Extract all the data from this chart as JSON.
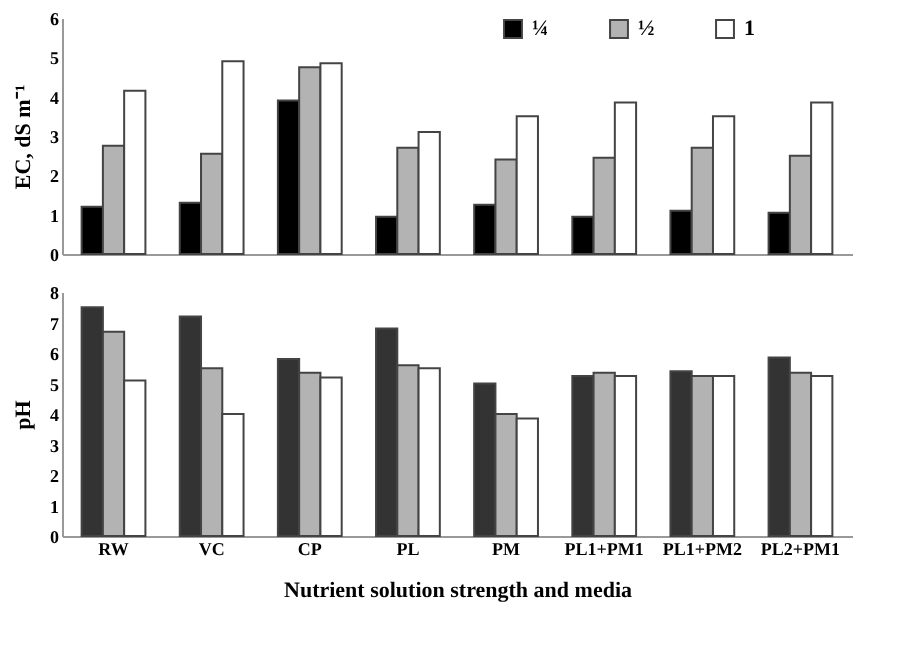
{
  "chart_data": [
    {
      "type": "bar",
      "ylabel": "EC, dS m⁻¹",
      "categories": [
        null,
        null,
        null,
        null,
        null,
        null,
        null,
        null
      ],
      "ylim": [
        0,
        6
      ],
      "yticks": [
        0,
        1,
        2,
        3,
        4,
        5,
        6
      ],
      "tick_labels": "y",
      "legend": "top right",
      "grid": false,
      "series": [
        {
          "name": "¼",
          "color": "#000000",
          "values": [
            1.2,
            1.3,
            3.9,
            0.95,
            1.25,
            0.95,
            1.1,
            1.05
          ]
        },
        {
          "name": "½",
          "color": "#b3b3b3",
          "values": [
            2.75,
            2.55,
            4.75,
            2.7,
            2.4,
            2.45,
            2.7,
            2.5
          ]
        },
        {
          "name": "1",
          "color": "#ffffff",
          "values": [
            4.15,
            4.9,
            4.85,
            3.1,
            3.5,
            3.85,
            3.5,
            3.85
          ]
        }
      ]
    },
    {
      "type": "bar",
      "ylabel": "pH",
      "xlabel": "Nutrient solution strength and media",
      "categories": [
        "RW",
        "VC",
        "CP",
        "PL",
        "PM",
        "PL1+PM1",
        "PL1+PM2",
        "PL2+PM1"
      ],
      "ylim": [
        0,
        8
      ],
      "yticks": [
        0,
        1,
        2,
        3,
        4,
        5,
        6,
        7,
        8
      ],
      "legend": false,
      "grid": false,
      "series": [
        {
          "color": "#333333",
          "values": [
            7.5,
            7.2,
            5.8,
            6.8,
            5.0,
            5.25,
            5.4,
            5.85
          ]
        },
        {
          "color": "#b3b3b3",
          "values": [
            6.7,
            5.5,
            5.35,
            5.6,
            4.0,
            5.35,
            5.25,
            5.35
          ]
        },
        {
          "color": "#ffffff",
          "values": [
            5.1,
            4.0,
            5.2,
            5.5,
            3.85,
            5.25,
            5.25,
            5.25
          ]
        }
      ]
    }
  ]
}
